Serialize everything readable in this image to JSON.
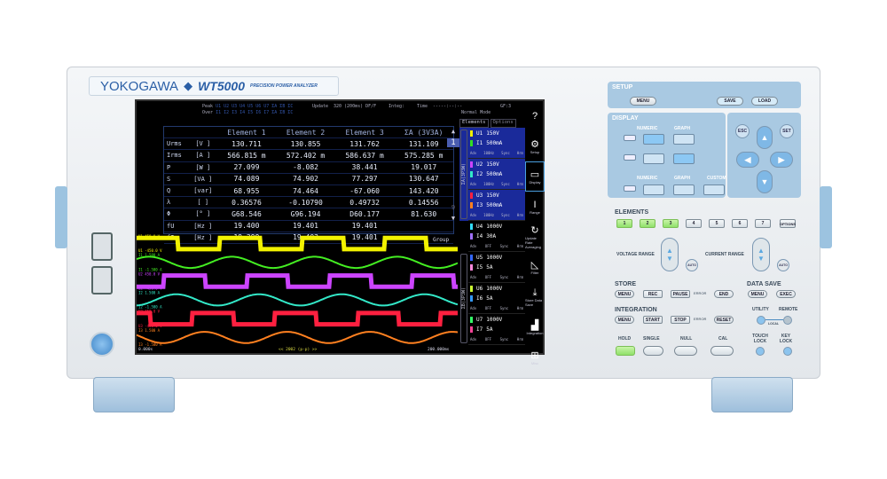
{
  "device": {
    "brand": "YOKOGAWA",
    "model": "WT5000",
    "subtitle": "PRECISION POWER ANALYZER"
  },
  "screen": {
    "status": {
      "peak_label": "Peak",
      "over_label": "Over",
      "peak_codes": "U1 U2 U3 U4 U5 U6 U7 ΣA ΣB ΣC",
      "over_codes": "I1 I2 I3 I4 I5 I6 I7 ΣA ΣB ΣC",
      "update_label": "Update",
      "update_value": "320 (200ms) DF/F",
      "integ_label": "Integ:",
      "time_label": "Time",
      "time_value": "-----:--:--",
      "mode": "Normal Mode",
      "page": "GF:3"
    },
    "table": {
      "headers": [
        "",
        "",
        "Element 1",
        "Element 2",
        "Element 3",
        "ΣA (3V3A)"
      ],
      "rows": [
        [
          "Urms",
          "[V ]",
          "130.711",
          "130.855",
          "131.762",
          "131.109"
        ],
        [
          "Irms",
          "[A ]",
          "566.815 m",
          "572.402 m",
          "586.637 m",
          "575.285 m"
        ],
        [
          "P",
          "[W ]",
          "27.099",
          "-8.082",
          "38.441",
          "19.017"
        ],
        [
          "S",
          "[VA ]",
          "74.089",
          "74.902",
          "77.297",
          "130.647"
        ],
        [
          "Q",
          "[var]",
          "68.955",
          "74.464",
          "-67.060",
          "143.420"
        ],
        [
          "λ",
          "[ ]",
          "0.36576",
          "-0.10790",
          "0.49732",
          "0.14556"
        ],
        [
          "Φ",
          "[° ]",
          "G68.546",
          "G96.194",
          "D60.177",
          "81.630"
        ],
        [
          "fU",
          "[Hz ]",
          "19.400",
          "19.401",
          "19.401",
          ""
        ],
        [
          "fI",
          "[Hz ]",
          "19.399",
          "19.403",
          "19.401",
          ""
        ]
      ]
    },
    "scroll": {
      "up": "▲",
      "page": "1",
      "last": "9",
      "down": "▼"
    },
    "waves": {
      "group_label": "Group",
      "time_start": "0.000s",
      "time_end": "200.000ms",
      "center_label": "<< 2002 (p-p) >>",
      "traces": [
        {
          "name": "U1",
          "top": "450.0 V",
          "bottom": "-450.0 V",
          "color": "#f2f200",
          "shape": "square",
          "phase": 0
        },
        {
          "name": "I1",
          "top": "1.500 A",
          "bottom": "-1.500 A",
          "color": "#44ee22",
          "shape": "sine",
          "phase": 0.1
        },
        {
          "name": "U2",
          "top": "450.0 V",
          "bottom": "-450.0 V",
          "color": "#cc44ff",
          "shape": "square",
          "phase": 0.67
        },
        {
          "name": "I2",
          "top": "1.500 A",
          "bottom": "-1.500 A",
          "color": "#33e8c8",
          "shape": "sine",
          "phase": 0.77
        },
        {
          "name": "U3",
          "top": "450.0 V",
          "bottom": "-450.0 V",
          "color": "#ff2040",
          "shape": "square",
          "phase": 0.33
        },
        {
          "name": "I3",
          "top": "1.500 A",
          "bottom": "-1.500 A",
          "color": "#ff8020",
          "shape": "sine",
          "phase": 0.43
        }
      ]
    },
    "side": {
      "tabs": [
        "Elements",
        "Options"
      ],
      "wiring_a": "ΣA(3P3W)",
      "wiring_b": "ΣB(3P3W)",
      "elements": [
        {
          "u": "U1",
          "ur": "150V",
          "i": "I1",
          "ir": "500mA",
          "uc": "#f0f000",
          "ic": "#33dd22",
          "lf": "Adv",
          "ff": "100Hz",
          "sync": "Sync",
          "hrm": "Hrm",
          "sel": true
        },
        {
          "u": "U2",
          "ur": "150V",
          "i": "I2",
          "ir": "500mA",
          "uc": "#cc44ff",
          "ic": "#33e8c8",
          "lf": "Adv",
          "ff": "100Hz",
          "sync": "Sync",
          "hrm": "Hrm",
          "sel": true
        },
        {
          "u": "U3",
          "ur": "150V",
          "i": "I3",
          "ir": "500mA",
          "uc": "#ff2040",
          "ic": "#ff8020",
          "lf": "Adv",
          "ff": "100Hz",
          "sync": "Sync",
          "hrm": "Hrm",
          "sel": true
        },
        {
          "u": "U4",
          "ur": "1000V",
          "i": "I4",
          "ir": "30A",
          "uc": "#33ddff",
          "ic": "#a070ff",
          "lf": "Adv",
          "ff": "OFF",
          "sync": "Sync",
          "hrm": "Hrm",
          "sel": false
        },
        {
          "u": "U5",
          "ur": "1000V",
          "i": "I5",
          "ir": "5A",
          "uc": "#3366ff",
          "ic": "#ff88dd",
          "lf": "Adv",
          "ff": "OFF",
          "sync": "Sync",
          "hrm": "Hrm",
          "sel": false
        },
        {
          "u": "U6",
          "ur": "1000V",
          "i": "I6",
          "ir": "5A",
          "uc": "#ccff33",
          "ic": "#3399ff",
          "lf": "Adv",
          "ff": "OFF",
          "sync": "Sync",
          "hrm": "Hrm",
          "sel": false
        },
        {
          "u": "U7",
          "ur": "1000V",
          "i": "I7",
          "ir": "5A",
          "uc": "#33ff66",
          "ic": "#ff4499",
          "lf": "Adv",
          "ff": "OFF",
          "sync": "Sync",
          "hrm": "Hrm",
          "sel": false
        }
      ]
    },
    "menu": [
      {
        "icon": "help-icon",
        "glyph": "?",
        "label": ""
      },
      {
        "icon": "gear-icon",
        "glyph": "⚙",
        "label": "Setup"
      },
      {
        "icon": "display-icon",
        "glyph": "▭",
        "label": "Display"
      },
      {
        "icon": "range-icon",
        "glyph": "I",
        "label": "Range"
      },
      {
        "icon": "refresh-icon",
        "glyph": "↻",
        "label": "Update Rate Averaging"
      },
      {
        "icon": "filter-icon",
        "glyph": "◺",
        "label": "Filter"
      },
      {
        "icon": "download-icon",
        "glyph": "⤓",
        "label": "Store Data Save"
      },
      {
        "icon": "integration-icon",
        "glyph": "▟",
        "label": "Integration"
      },
      {
        "icon": "toolbox-icon",
        "glyph": "⊞",
        "label": "Misc"
      }
    ]
  },
  "panel": {
    "setup": {
      "title": "SETUP",
      "menu": "MENU",
      "save": "SAVE",
      "load": "LOAD"
    },
    "display": {
      "title": "DISPLAY",
      "numeric": "NUMERIC",
      "graph": "GRAPH",
      "custom": "CUSTOM",
      "esc": "ESC",
      "set": "SET"
    },
    "elements": {
      "title": "ELEMENTS",
      "keys": [
        "1",
        "2",
        "3",
        "4",
        "5",
        "6",
        "7"
      ],
      "options": "OPTIONS",
      "active": [
        "1",
        "2",
        "3"
      ]
    },
    "voltage_range": "VOLTAGE RANGE",
    "current_range": "CURRENT RANGE",
    "auto": "AUTO",
    "store": {
      "title": "STORE",
      "menu": "MENU",
      "rec": "REC",
      "pause": "PAUSE",
      "error": "ERROR",
      "end": "END"
    },
    "data_save": {
      "title": "DATA SAVE",
      "menu": "MENU",
      "exec": "EXEC"
    },
    "integration": {
      "title": "INTEGRATION",
      "menu": "MENU",
      "start": "START",
      "stop": "STOP",
      "error": "ERROR",
      "reset": "RESET"
    },
    "utility": "UTILITY",
    "remote": "REMOTE",
    "local": "LOCAL",
    "bottom": {
      "hold": "HOLD",
      "single": "SINGLE",
      "null": "NULL",
      "cal": "CAL",
      "touch_lock": "TOUCH LOCK",
      "key_lock": "KEY LOCK"
    }
  }
}
